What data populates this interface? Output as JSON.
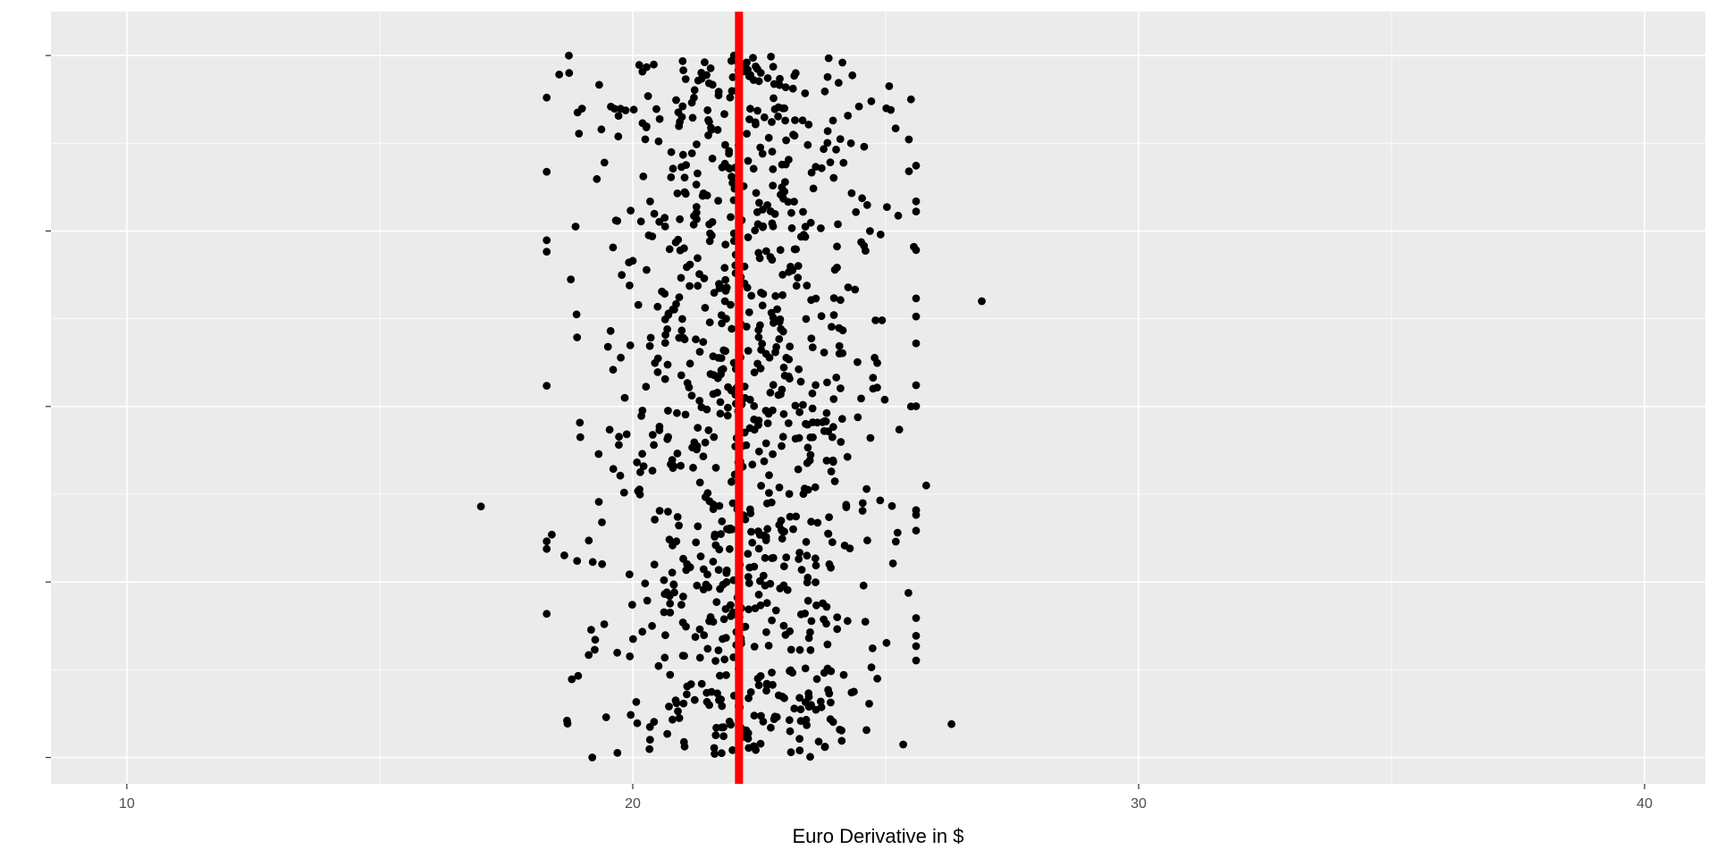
{
  "chart_data": {
    "type": "scatter",
    "title": "",
    "xlabel": "Euro Derivative in $",
    "ylabel": "",
    "xlim": [
      8.5,
      41.2
    ],
    "ylim": [
      -0.15,
      4.25
    ],
    "x_ticks": [
      10,
      20,
      30,
      40
    ],
    "x_tick_labels": [
      "10",
      "20",
      "30",
      "40"
    ],
    "y_ticks": [
      0,
      1,
      2,
      3,
      4
    ],
    "y_tick_labels": [
      "",
      "",
      "",
      "",
      ""
    ],
    "grid": true,
    "colors": {
      "panel": "#ebebeb",
      "grid": "#ffffff",
      "point": "#000000",
      "vline": "#ff0000"
    },
    "vline": {
      "x": 22.1,
      "color": "#ff0000"
    },
    "n_points": 1000,
    "points_summary": "1000 points, x roughly normal with mean about 22.1 and sd about 1.5 (range about 17 to 27); y jittered uniformly between 0 and 4",
    "points": [
      {
        "x": 18.3,
        "y": 3.76
      },
      {
        "x": 25.5,
        "y": 3.75
      },
      {
        "x": 26.9,
        "y": 2.6
      },
      {
        "x": 17.0,
        "y": 1.43
      },
      {
        "x": 25.8,
        "y": 1.55
      },
      {
        "x": 26.3,
        "y": 0.19
      },
      {
        "x": 19.2,
        "y": 0.0
      },
      {
        "x": 18.7,
        "y": 0.21
      },
      {
        "x": 18.4,
        "y": 1.27
      },
      {
        "x": 25.2,
        "y": 1.23
      },
      {
        "x": 25.5,
        "y": 2.0
      },
      {
        "x": 24.9,
        "y": 2.98
      },
      {
        "x": 18.9,
        "y": 1.12
      },
      {
        "x": 25.1,
        "y": 3.69
      },
      {
        "x": 22.0,
        "y": 4.0
      }
    ]
  }
}
